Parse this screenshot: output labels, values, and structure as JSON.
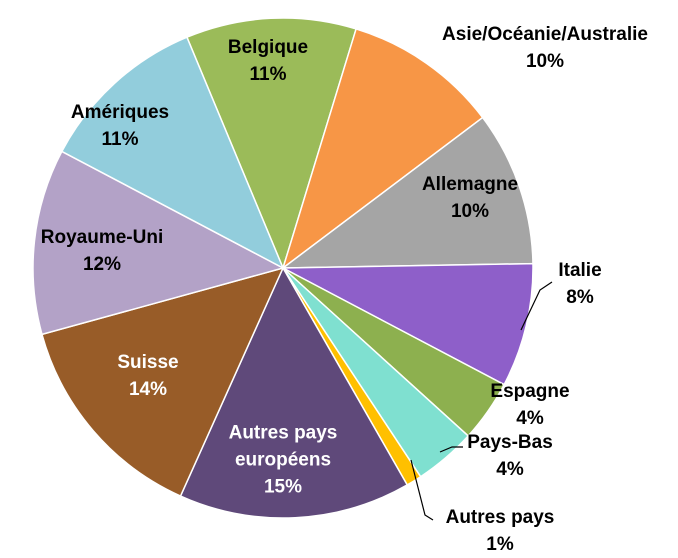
{
  "chart_data": {
    "type": "pie",
    "categories": [
      "Belgique",
      "Asie/Océanie/Australie",
      "Allemagne",
      "Italie",
      "Espagne",
      "Pays-Bas",
      "Autres pays",
      "Autres pays européens",
      "Suisse",
      "Royaume-Uni",
      "Amériques"
    ],
    "values": [
      11,
      10,
      10,
      8,
      4,
      4,
      1,
      15,
      14,
      12,
      11
    ],
    "value_labels": [
      "11%",
      "10%",
      "10%",
      "8%",
      "4%",
      "4%",
      "1%",
      "15%",
      "14%",
      "12%",
      "11%"
    ],
    "colors": [
      "#9bbb59",
      "#f79646",
      "#a5a5a5",
      "#8e5fc9",
      "#8db04f",
      "#7fe0d0",
      "#ffc000",
      "#5f497a",
      "#985c28",
      "#b3a2c7",
      "#92cddc"
    ]
  }
}
